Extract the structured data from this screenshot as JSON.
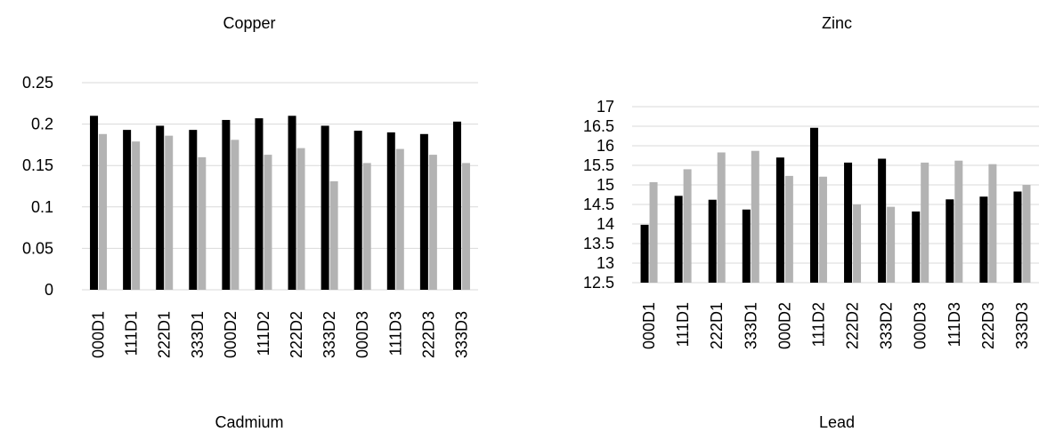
{
  "colors": {
    "series1": "#000000",
    "series2": "#b3b3b3",
    "grid": "#d9d9d9"
  },
  "chart_data": [
    {
      "type": "bar",
      "title": "Copper",
      "categories": [
        "000D1",
        "111D1",
        "222D1",
        "333D1",
        "000D2",
        "111D2",
        "222D2",
        "333D2",
        "000D3",
        "111D3",
        "222D3",
        "333D3"
      ],
      "series": [
        {
          "values": [
            0.21,
            0.193,
            0.198,
            0.193,
            0.205,
            0.207,
            0.21,
            0.198,
            0.192,
            0.19,
            0.188,
            0.203
          ]
        },
        {
          "values": [
            0.188,
            0.179,
            0.186,
            0.16,
            0.181,
            0.163,
            0.171,
            0.131,
            0.153,
            0.17,
            0.163,
            0.153
          ]
        }
      ],
      "yticks": [
        "0",
        "0.05",
        "0.1",
        "0.15",
        "0.2",
        "0.25"
      ],
      "ylim": [
        0,
        0.25
      ],
      "grid": true
    },
    {
      "type": "bar",
      "title": "Zinc",
      "categories": [
        "000D1",
        "111D1",
        "222D1",
        "333D1",
        "000D2",
        "111D2",
        "222D2",
        "333D2",
        "000D3",
        "111D3",
        "222D3",
        "333D3"
      ],
      "series": [
        {
          "values": [
            13.98,
            14.72,
            14.62,
            14.37,
            15.7,
            16.46,
            15.57,
            15.67,
            14.32,
            14.63,
            14.7,
            14.83
          ]
        },
        {
          "values": [
            15.07,
            15.4,
            15.83,
            15.87,
            15.23,
            15.21,
            14.5,
            14.44,
            15.57,
            15.62,
            15.53,
            15.0
          ]
        }
      ],
      "yticks": [
        "12.5",
        "13",
        "13.5",
        "14",
        "14.5",
        "15",
        "15.5",
        "16",
        "16.5",
        "17"
      ],
      "ylim": [
        12.5,
        17
      ],
      "grid": true
    },
    {
      "type": "bar",
      "title": "Cadmium"
    },
    {
      "type": "bar",
      "title": "Lead"
    }
  ]
}
